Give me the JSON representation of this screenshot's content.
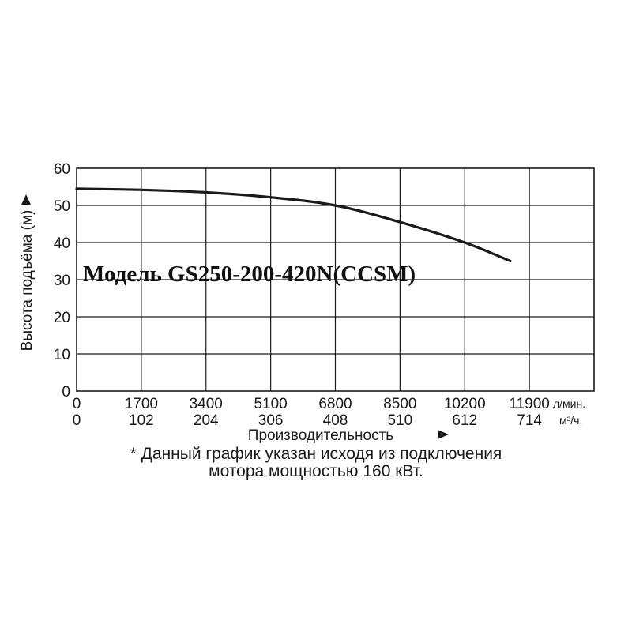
{
  "chart_data": {
    "type": "line",
    "title": "Модель GS250-200-420N(CCSM)",
    "xlabel": "Производительность",
    "ylabel": "Высота подъёма (м)",
    "x_ticks_primary": [
      "0",
      "1700",
      "3400",
      "5100",
      "6800",
      "8500",
      "10200",
      "11900"
    ],
    "x_ticks_secondary": [
      "0",
      "102",
      "204",
      "306",
      "408",
      "510",
      "612",
      "714"
    ],
    "x_unit_primary": "л/мин.",
    "x_unit_secondary": "м³/ч.",
    "y_ticks": [
      "0",
      "10",
      "20",
      "30",
      "40",
      "50",
      "60"
    ],
    "xlim": [
      0,
      11900
    ],
    "ylim": [
      0,
      60
    ],
    "grid": true,
    "series": [
      {
        "x": [
          0,
          1700,
          3400,
          5100,
          6800,
          8500,
          10200,
          11400
        ],
        "y": [
          54.5,
          54.2,
          53.5,
          52.2,
          50,
          45.5,
          40,
          35
        ]
      }
    ]
  },
  "note_line1": "* Данный график указан исходя из подключения",
  "note_line2": "мотора мощностью 160 кВт."
}
